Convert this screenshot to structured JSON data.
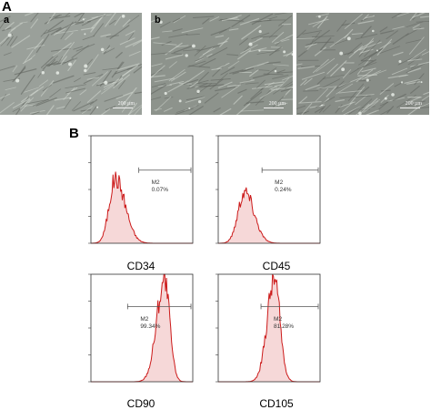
{
  "panel_a": {
    "letter": "A",
    "images": [
      {
        "sub_letter": "a",
        "scale": "200 μm",
        "tone": "#9aa09a"
      },
      {
        "sub_letter": "b",
        "scale": "200 μm",
        "tone": "#8d938c"
      },
      {
        "sub_letter": "",
        "scale": "200 μm",
        "tone": "#888d87"
      }
    ]
  },
  "panel_b": {
    "letter": "B",
    "histograms": [
      {
        "label": "CD34",
        "gate_name": "M2",
        "gate_value": "0.07%"
      },
      {
        "label": "CD45",
        "gate_name": "M2",
        "gate_value": "0.24%"
      },
      {
        "label": "CD90",
        "gate_name": "M2",
        "gate_value": "99.34%"
      },
      {
        "label": "CD105",
        "gate_name": "M2",
        "gate_value": "81.28%"
      }
    ]
  },
  "colors": {
    "histogram_line": "#cc1a1a",
    "histogram_fill": "#f6d8d8",
    "gate_line": "#555555"
  }
}
